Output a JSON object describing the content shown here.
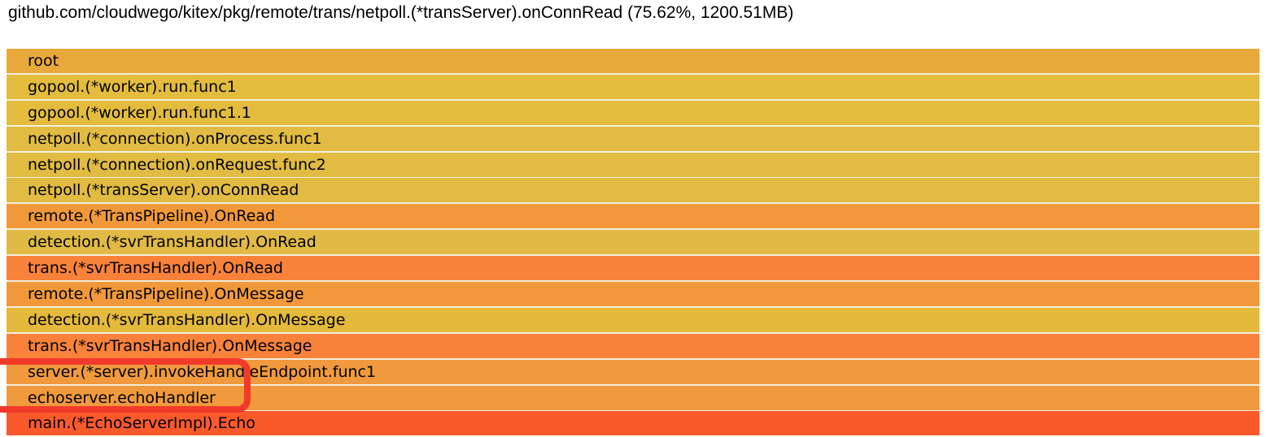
{
  "header": {
    "title": "github.com/cloudwego/kitex/pkg/remote/trans/netpoll.(*transServer).onConnRead (75.62%, 1200.51MB)"
  },
  "flamegraph": {
    "frames": [
      {
        "label": "root",
        "color": "#e9a93a"
      },
      {
        "label": "gopool.(*worker).run.func1",
        "color": "#e3bc3e"
      },
      {
        "label": "gopool.(*worker).run.func1.1",
        "color": "#e3bc3e"
      },
      {
        "label": "netpoll.(*connection).onProcess.func1",
        "color": "#e1bb42"
      },
      {
        "label": "netpoll.(*connection).onRequest.func2",
        "color": "#e1bb42"
      },
      {
        "label": "netpoll.(*transServer).onConnRead",
        "color": "#e1bb42"
      },
      {
        "label": "remote.(*TransPipeline).OnRead",
        "color": "#f1993a"
      },
      {
        "label": "detection.(*svrTransHandler).OnRead",
        "color": "#e0ba45"
      },
      {
        "label": "trans.(*svrTransHandler).OnRead",
        "color": "#f8823a"
      },
      {
        "label": "remote.(*TransPipeline).OnMessage",
        "color": "#f1993a"
      },
      {
        "label": "detection.(*svrTransHandler).OnMessage",
        "color": "#e4b93c"
      },
      {
        "label": "trans.(*svrTransHandler).OnMessage",
        "color": "#f8823a"
      },
      {
        "label": "server.(*server).invokeHandleEndpoint.func1",
        "color": "#f0993d"
      },
      {
        "label": "echoserver.echoHandler",
        "color": "#f0993d"
      },
      {
        "label": "main.(*EchoServerImpl).Echo",
        "color": "#fa5a2b"
      }
    ]
  },
  "annotation": {
    "highlighted_frames": [
      "server.(*server).invokeHandleEndpoint.func1",
      "echoserver.echoHandler"
    ],
    "color": "#f23a2b"
  }
}
